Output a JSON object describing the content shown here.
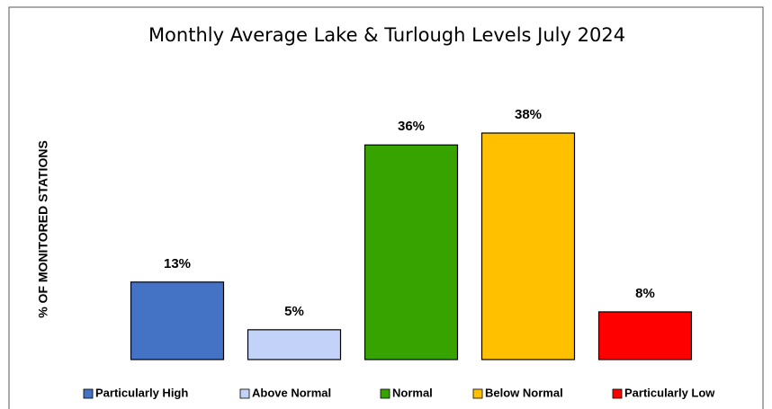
{
  "chart_data": {
    "type": "bar",
    "title": "Monthly Average Lake & Turlough Levels July 2024",
    "y_label": "% OF MONITORED STATIONS",
    "categories": [
      "Particularly High",
      "Above Normal",
      "Normal",
      "Below Normal",
      "Particularly Low"
    ],
    "values": [
      13,
      5,
      36,
      38,
      8
    ],
    "value_labels": [
      "13%",
      "5%",
      "36%",
      "38%",
      "8%"
    ],
    "colors": [
      "#4472c4",
      "#c2d2f8",
      "#36a300",
      "#ffc000",
      "#ff0000"
    ],
    "legend": "bottom"
  }
}
